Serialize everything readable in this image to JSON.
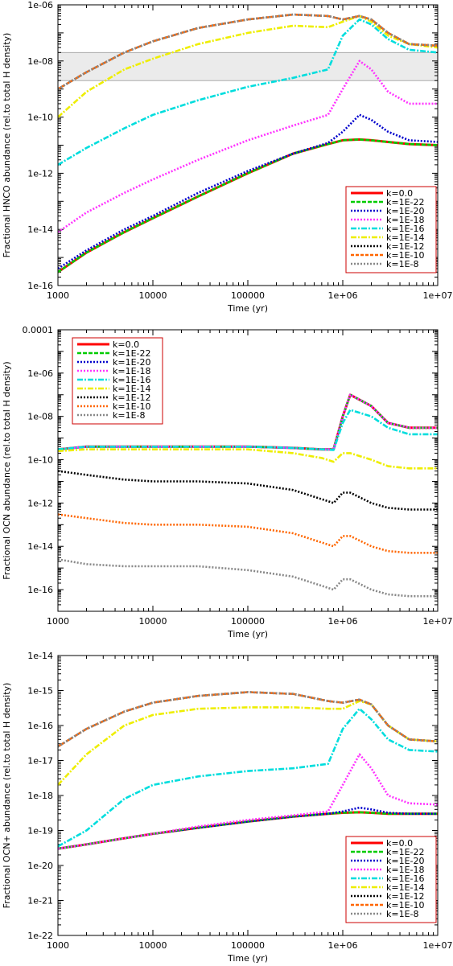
{
  "chart_data": [
    {
      "type": "line",
      "xlabel": "Time (yr)",
      "ylabel": "Fractional HNCO abundance (rel.to total H density)",
      "x_scale": "log",
      "y_scale": "log",
      "xlim": [
        1000,
        10000000
      ],
      "ylim": [
        1e-16,
        1e-06
      ],
      "x_ticks": [
        "1000",
        "10000",
        "100000",
        "1e+06",
        "1e+07"
      ],
      "y_ticks": [
        "1e-16",
        "1e-14",
        "1e-12",
        "1e-10",
        "1e-08",
        "1e-06"
      ],
      "legend_position": "bottom-right",
      "shaded_band": [
        2e-09,
        2e-08
      ],
      "x": [
        1000,
        2000,
        5000,
        10000,
        30000,
        100000,
        300000,
        700000,
        1000000,
        1500000,
        2000000,
        3000000,
        5000000,
        10000000
      ],
      "series": [
        {
          "name": "k=0.0",
          "color": "#ff0000",
          "dash": "",
          "values": [
            3e-16,
            1.5e-15,
            8e-15,
            2.5e-14,
            1.5e-13,
            1e-12,
            5e-12,
            1.1e-11,
            1.5e-11,
            1.6e-11,
            1.5e-11,
            1.3e-11,
            1.1e-11,
            1e-11
          ]
        },
        {
          "name": "k=1E-22",
          "color": "#00cc00",
          "dash": "5,2",
          "values": [
            3e-16,
            1.5e-15,
            8e-15,
            2.5e-14,
            1.5e-13,
            1e-12,
            5e-12,
            1.1e-11,
            1.5e-11,
            1.6e-11,
            1.5e-11,
            1.3e-11,
            1.1e-11,
            1e-11
          ]
        },
        {
          "name": "k=1E-20",
          "color": "#0000cc",
          "dash": "2,2",
          "values": [
            4e-16,
            1.8e-15,
            1e-14,
            3e-14,
            2e-13,
            1.2e-12,
            5e-12,
            1.2e-11,
            3e-11,
            1.2e-10,
            8e-11,
            3e-11,
            1.5e-11,
            1.3e-11
          ]
        },
        {
          "name": "k=1E-18",
          "color": "#ff33ff",
          "dash": "2,2",
          "values": [
            8e-15,
            4e-14,
            2e-13,
            6e-13,
            3e-12,
            1.5e-11,
            5e-11,
            1.2e-10,
            1e-09,
            1e-08,
            5e-09,
            8e-10,
            3e-10,
            3e-10
          ]
        },
        {
          "name": "k=1E-16",
          "color": "#00dddd",
          "dash": "7,2,2,2",
          "values": [
            2e-12,
            8e-12,
            4e-11,
            1.2e-10,
            4e-10,
            1.2e-09,
            2.5e-09,
            5e-09,
            8e-08,
            3e-07,
            2e-07,
            6e-08,
            2.5e-08,
            2e-08
          ]
        },
        {
          "name": "k=1E-14",
          "color": "#eeee00",
          "dash": "7,2,2,2",
          "values": [
            1e-10,
            8e-10,
            5e-09,
            1.2e-08,
            4e-08,
            1e-07,
            1.8e-07,
            1.6e-07,
            2.5e-07,
            4e-07,
            2.5e-07,
            8e-08,
            4e-08,
            3e-08
          ]
        },
        {
          "name": "k=1E-12",
          "color": "#000000",
          "dash": "2,2",
          "values": [
            1e-09,
            4e-09,
            2e-08,
            5e-08,
            1.5e-07,
            3e-07,
            4.5e-07,
            4e-07,
            3e-07,
            4e-07,
            3e-07,
            1e-07,
            4e-08,
            3.5e-08
          ]
        },
        {
          "name": "k=1E-10",
          "color": "#ff6600",
          "dash": "4,2",
          "values": [
            1e-09,
            4e-09,
            2e-08,
            5e-08,
            1.5e-07,
            3e-07,
            4.5e-07,
            4e-07,
            3e-07,
            4e-07,
            3e-07,
            1e-07,
            4e-08,
            3.5e-08
          ]
        },
        {
          "name": "k=1E-8",
          "color": "#888888",
          "dash": "2,2",
          "values": [
            1e-09,
            4e-09,
            2e-08,
            5e-08,
            1.5e-07,
            3e-07,
            4.5e-07,
            4e-07,
            3e-07,
            4e-07,
            3e-07,
            1e-07,
            4e-08,
            3.5e-08
          ]
        }
      ]
    },
    {
      "type": "line",
      "xlabel": "Time (yr)",
      "ylabel": "Fractional OCN abundance (rel.to total H density)",
      "x_scale": "log",
      "y_scale": "log",
      "xlim": [
        1000,
        10000000
      ],
      "ylim": [
        1e-17,
        0.0001
      ],
      "x_ticks": [
        "1000",
        "10000",
        "100000",
        "1e+06",
        "1e+07"
      ],
      "y_ticks": [
        "1e-16",
        "1e-14",
        "1e-12",
        "1e-10",
        "1e-08",
        "1e-06",
        "0.0001"
      ],
      "legend_position": "top-left",
      "x": [
        1000,
        2000,
        5000,
        10000,
        30000,
        100000,
        300000,
        600000,
        800000,
        1000000,
        1200000,
        2000000,
        3000000,
        5000000,
        10000000
      ],
      "series": [
        {
          "name": "k=0.0",
          "color": "#ff0000",
          "dash": "",
          "values": [
            3e-10,
            4e-10,
            4e-10,
            4e-10,
            4e-10,
            4e-10,
            3.5e-10,
            3e-10,
            3e-10,
            1e-08,
            1e-07,
            3e-08,
            5e-09,
            3e-09,
            3e-09
          ]
        },
        {
          "name": "k=1E-22",
          "color": "#00cc00",
          "dash": "5,2",
          "values": [
            3e-10,
            4e-10,
            4e-10,
            4e-10,
            4e-10,
            4e-10,
            3.5e-10,
            3e-10,
            3e-10,
            1e-08,
            1e-07,
            3e-08,
            5e-09,
            3e-09,
            3e-09
          ]
        },
        {
          "name": "k=1E-20",
          "color": "#0000cc",
          "dash": "2,2",
          "values": [
            3e-10,
            4e-10,
            4e-10,
            4e-10,
            4e-10,
            4e-10,
            3.5e-10,
            3e-10,
            3e-10,
            1e-08,
            1e-07,
            3e-08,
            5e-09,
            3e-09,
            3e-09
          ]
        },
        {
          "name": "k=1E-18",
          "color": "#ff33ff",
          "dash": "2,2",
          "values": [
            3e-10,
            4e-10,
            4e-10,
            4e-10,
            4e-10,
            4e-10,
            3.5e-10,
            3e-10,
            3e-10,
            1e-08,
            1e-07,
            3e-08,
            5e-09,
            3e-09,
            3e-09
          ]
        },
        {
          "name": "k=1E-16",
          "color": "#00dddd",
          "dash": "7,2,2,2",
          "values": [
            3e-10,
            4e-10,
            4e-10,
            4e-10,
            4e-10,
            4e-10,
            3.5e-10,
            3e-10,
            2.8e-10,
            5e-09,
            2e-08,
            1e-08,
            3e-09,
            1.5e-09,
            1.5e-09
          ]
        },
        {
          "name": "k=1E-14",
          "color": "#eeee00",
          "dash": "7,2,2,2",
          "values": [
            2.5e-10,
            3e-10,
            3e-10,
            3e-10,
            3e-10,
            3e-10,
            2e-10,
            1.2e-10,
            8e-11,
            2e-10,
            2e-10,
            1e-10,
            5e-11,
            4e-11,
            4e-11
          ]
        },
        {
          "name": "k=1E-12",
          "color": "#000000",
          "dash": "2,2",
          "values": [
            3e-11,
            2e-11,
            1.2e-11,
            1e-11,
            1e-11,
            8e-12,
            4e-12,
            1.5e-12,
            1e-12,
            3e-12,
            3e-12,
            1e-12,
            6e-13,
            5e-13,
            5e-13
          ]
        },
        {
          "name": "k=1E-10",
          "color": "#ff6600",
          "dash": "2,2",
          "values": [
            3e-13,
            2e-13,
            1.2e-13,
            1e-13,
            1e-13,
            8e-14,
            4e-14,
            1.5e-14,
            1e-14,
            3e-14,
            3e-14,
            1e-14,
            6e-15,
            5e-15,
            5e-15
          ]
        },
        {
          "name": "k=1E-8",
          "color": "#888888",
          "dash": "2,2",
          "values": [
            2.5e-15,
            1.5e-15,
            1.2e-15,
            1.2e-15,
            1.2e-15,
            8e-16,
            4e-16,
            1.5e-16,
            1e-16,
            3e-16,
            3e-16,
            1e-16,
            6e-17,
            5e-17,
            5e-17
          ]
        }
      ]
    },
    {
      "type": "line",
      "xlabel": "Time (yr)",
      "ylabel": "Fractional OCN+ abundance (rel.to total H density)",
      "x_scale": "log",
      "y_scale": "log",
      "xlim": [
        1000,
        10000000
      ],
      "ylim": [
        1e-22,
        1e-14
      ],
      "x_ticks": [
        "1000",
        "10000",
        "100000",
        "1e+06",
        "1e+07"
      ],
      "y_ticks": [
        "1e-22",
        "1e-21",
        "1e-20",
        "1e-19",
        "1e-18",
        "1e-17",
        "1e-16",
        "1e-15",
        "1e-14"
      ],
      "legend_position": "bottom-right",
      "x": [
        1000,
        2000,
        5000,
        10000,
        30000,
        100000,
        300000,
        700000,
        1000000,
        1500000,
        2000000,
        3000000,
        5000000,
        10000000
      ],
      "series": [
        {
          "name": "k=0.0",
          "color": "#ff0000",
          "dash": "",
          "values": [
            3e-20,
            4e-20,
            6e-20,
            8e-20,
            1.2e-19,
            1.8e-19,
            2.5e-19,
            3e-19,
            3.2e-19,
            3.3e-19,
            3.2e-19,
            3e-19,
            3e-19,
            3e-19
          ]
        },
        {
          "name": "k=1E-22",
          "color": "#00cc00",
          "dash": "5,2",
          "values": [
            3e-20,
            4e-20,
            6e-20,
            8e-20,
            1.2e-19,
            1.8e-19,
            2.5e-19,
            3e-19,
            3.2e-19,
            3.3e-19,
            3.2e-19,
            3e-19,
            3e-19,
            3e-19
          ]
        },
        {
          "name": "k=1E-20",
          "color": "#0000cc",
          "dash": "2,2",
          "values": [
            3e-20,
            4e-20,
            6e-20,
            8e-20,
            1.2e-19,
            1.8e-19,
            2.5e-19,
            3e-19,
            3.5e-19,
            4.5e-19,
            4e-19,
            3.2e-19,
            3e-19,
            3e-19
          ]
        },
        {
          "name": "k=1E-18",
          "color": "#ff33ff",
          "dash": "2,2",
          "values": [
            3e-20,
            4e-20,
            6e-20,
            8e-20,
            1.3e-19,
            2e-19,
            2.7e-19,
            3.5e-19,
            2e-18,
            1.5e-17,
            6e-18,
            1e-18,
            6e-19,
            5.5e-19
          ]
        },
        {
          "name": "k=1E-16",
          "color": "#00dddd",
          "dash": "7,2,2,2",
          "values": [
            3.5e-20,
            1e-19,
            8e-19,
            2e-18,
            3.5e-18,
            5e-18,
            6e-18,
            8e-18,
            8e-17,
            3e-16,
            1.5e-16,
            4e-17,
            2e-17,
            1.8e-17
          ]
        },
        {
          "name": "k=1E-14",
          "color": "#eeee00",
          "dash": "7,2,2,2",
          "values": [
            2e-18,
            1.5e-17,
            1e-16,
            2e-16,
            3e-16,
            3.3e-16,
            3.3e-16,
            3e-16,
            3e-16,
            5e-16,
            4e-16,
            1e-16,
            4e-17,
            3.5e-17
          ]
        },
        {
          "name": "k=1E-12",
          "color": "#000000",
          "dash": "2,2",
          "values": [
            2.5e-17,
            8e-17,
            2.5e-16,
            4.5e-16,
            7e-16,
            9e-16,
            8e-16,
            5e-16,
            4.5e-16,
            5.5e-16,
            4e-16,
            1e-16,
            4e-17,
            3.5e-17
          ]
        },
        {
          "name": "k=1E-10",
          "color": "#ff6600",
          "dash": "4,2",
          "values": [
            2.5e-17,
            8e-17,
            2.5e-16,
            4.5e-16,
            7e-16,
            9e-16,
            8e-16,
            5e-16,
            4.5e-16,
            5.5e-16,
            4e-16,
            1e-16,
            4e-17,
            3.5e-17
          ]
        },
        {
          "name": "k=1E-8",
          "color": "#888888",
          "dash": "2,2",
          "values": [
            2.5e-17,
            8e-17,
            2.5e-16,
            4.5e-16,
            7e-16,
            9e-16,
            8e-16,
            5e-16,
            4.5e-16,
            5.5e-16,
            4e-16,
            1e-16,
            4e-17,
            3.5e-17
          ]
        }
      ]
    }
  ]
}
